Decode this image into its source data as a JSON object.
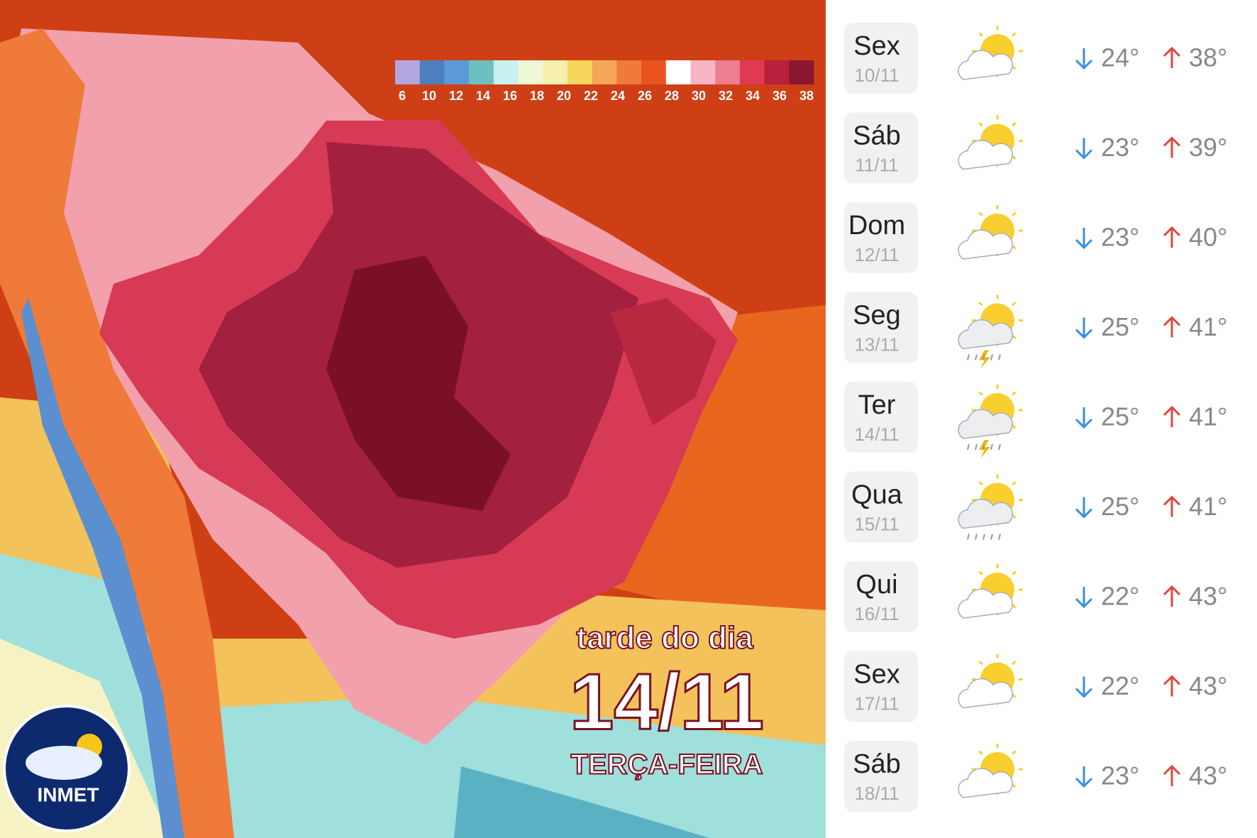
{
  "map": {
    "legend": {
      "labels": [
        "6",
        "10",
        "12",
        "14",
        "16",
        "18",
        "20",
        "22",
        "24",
        "26",
        "28",
        "30",
        "32",
        "34",
        "36",
        "38"
      ],
      "colors": [
        "#b3a6e0",
        "#4f7fbf",
        "#5b9bd5",
        "#6cc0c0",
        "#c8f0f0",
        "#f0f7d8",
        "#f5f0b0",
        "#f7d55a",
        "#f5a65a",
        "#ef7a3a",
        "#e8531f",
        "#ffffff",
        "#f6b6c3",
        "#ee7f93",
        "#e03a52",
        "#b8203c",
        "#8a1630"
      ]
    },
    "caption": {
      "line1": "tarde do dia",
      "date": "14/11",
      "weekday": "TERÇA-FEIRA"
    },
    "logo": "INMET"
  },
  "forecast": [
    {
      "day": "Sex",
      "date": "10/11",
      "icon": "sun-cloud",
      "low": "24°",
      "high": "38°"
    },
    {
      "day": "Sáb",
      "date": "11/11",
      "icon": "sun-cloud",
      "low": "23°",
      "high": "39°"
    },
    {
      "day": "Dom",
      "date": "12/11",
      "icon": "sun-cloud",
      "low": "23°",
      "high": "40°"
    },
    {
      "day": "Seg",
      "date": "13/11",
      "icon": "storm",
      "low": "25°",
      "high": "41°"
    },
    {
      "day": "Ter",
      "date": "14/11",
      "icon": "storm",
      "low": "25°",
      "high": "41°"
    },
    {
      "day": "Qua",
      "date": "15/11",
      "icon": "rain",
      "low": "25°",
      "high": "41°"
    },
    {
      "day": "Qui",
      "date": "16/11",
      "icon": "sun-cloud",
      "low": "22°",
      "high": "43°"
    },
    {
      "day": "Sex",
      "date": "17/11",
      "icon": "sun-cloud",
      "low": "22°",
      "high": "43°"
    },
    {
      "day": "Sáb",
      "date": "18/11",
      "icon": "sun-cloud",
      "low": "23°",
      "high": "43°"
    }
  ]
}
